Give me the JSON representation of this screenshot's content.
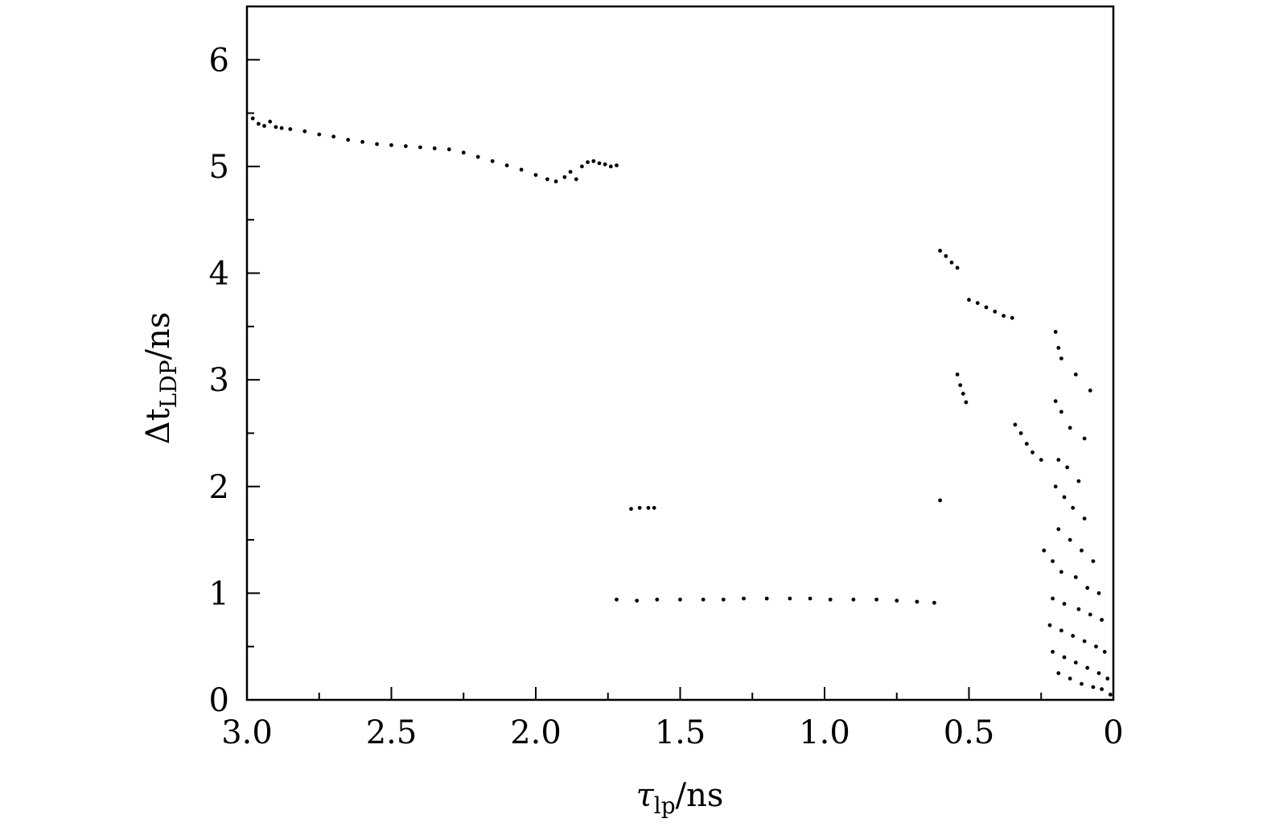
{
  "chart_data": {
    "type": "scatter",
    "title": "",
    "xlabel": {
      "symbol": "τ",
      "subscript": "lp",
      "unit": "/ns"
    },
    "ylabel": {
      "symbol": "Δt",
      "subscript": "LDP",
      "unit": "/ns"
    },
    "xlim": [
      3.0,
      0
    ],
    "ylim": [
      0,
      6.5
    ],
    "x_reversed": true,
    "grid": false,
    "legend": "none",
    "marker_color": "#000000",
    "x_ticks": [
      {
        "value": 3.0,
        "label": "3.0"
      },
      {
        "value": 2.5,
        "label": "2.5"
      },
      {
        "value": 2.0,
        "label": "2.0"
      },
      {
        "value": 1.5,
        "label": "1.5"
      },
      {
        "value": 1.0,
        "label": "1.0"
      },
      {
        "value": 0.5,
        "label": "0.5"
      },
      {
        "value": 0,
        "label": "0"
      }
    ],
    "x_minor_ticks": [
      2.75,
      2.25,
      1.75,
      1.25,
      0.75,
      0.25
    ],
    "y_ticks": [
      {
        "value": 0,
        "label": "0"
      },
      {
        "value": 1,
        "label": "1"
      },
      {
        "value": 2,
        "label": "2"
      },
      {
        "value": 3,
        "label": "3"
      },
      {
        "value": 4,
        "label": "4"
      },
      {
        "value": 5,
        "label": "5"
      },
      {
        "value": 6,
        "label": "6"
      }
    ],
    "y_minor_ticks": [
      0.5,
      1.5,
      2.5,
      3.5,
      4.5,
      5.5
    ],
    "series": [
      {
        "points": [
          [
            2.98,
            5.45
          ],
          [
            2.96,
            5.4
          ],
          [
            2.94,
            5.38
          ],
          [
            2.92,
            5.42
          ],
          [
            2.9,
            5.37
          ],
          [
            2.88,
            5.36
          ],
          [
            2.85,
            5.35
          ],
          [
            2.8,
            5.33
          ],
          [
            2.75,
            5.3
          ],
          [
            2.7,
            5.28
          ],
          [
            2.65,
            5.25
          ],
          [
            2.6,
            5.23
          ],
          [
            2.55,
            5.21
          ],
          [
            2.5,
            5.2
          ],
          [
            2.45,
            5.19
          ],
          [
            2.4,
            5.18
          ],
          [
            2.35,
            5.17
          ],
          [
            2.3,
            5.16
          ],
          [
            2.25,
            5.13
          ],
          [
            2.2,
            5.09
          ],
          [
            2.15,
            5.05
          ],
          [
            2.1,
            5.01
          ],
          [
            2.05,
            4.97
          ],
          [
            2.0,
            4.92
          ],
          [
            1.96,
            4.88
          ],
          [
            1.93,
            4.86
          ],
          [
            1.9,
            4.9
          ],
          [
            1.88,
            4.95
          ],
          [
            1.86,
            4.88
          ],
          [
            1.84,
            5.0
          ],
          [
            1.82,
            5.04
          ],
          [
            1.8,
            5.05
          ],
          [
            1.78,
            5.03
          ],
          [
            1.76,
            5.02
          ],
          [
            1.74,
            5.0
          ],
          [
            1.72,
            5.01
          ]
        ]
      },
      {
        "points": [
          [
            0.6,
            4.21
          ],
          [
            0.58,
            4.16
          ],
          [
            0.56,
            4.1
          ],
          [
            0.54,
            4.05
          ],
          [
            0.5,
            3.75
          ],
          [
            0.47,
            3.72
          ],
          [
            0.44,
            3.68
          ],
          [
            0.41,
            3.64
          ],
          [
            0.38,
            3.6
          ],
          [
            0.35,
            3.58
          ],
          [
            0.54,
            3.05
          ],
          [
            0.53,
            2.95
          ],
          [
            0.52,
            2.87
          ],
          [
            0.51,
            2.79
          ],
          [
            0.34,
            2.58
          ],
          [
            0.32,
            2.5
          ],
          [
            0.3,
            2.4
          ],
          [
            0.28,
            2.32
          ],
          [
            0.25,
            2.25
          ],
          [
            0.6,
            1.87
          ],
          [
            0.24,
            1.4
          ]
        ]
      },
      {
        "points": [
          [
            1.67,
            1.79
          ],
          [
            1.64,
            1.8
          ],
          [
            1.61,
            1.8
          ],
          [
            1.59,
            1.8
          ]
        ]
      },
      {
        "points": [
          [
            1.72,
            0.94
          ],
          [
            1.65,
            0.93
          ],
          [
            1.58,
            0.94
          ],
          [
            1.5,
            0.94
          ],
          [
            1.42,
            0.94
          ],
          [
            1.35,
            0.94
          ],
          [
            1.28,
            0.95
          ],
          [
            1.2,
            0.95
          ],
          [
            1.12,
            0.95
          ],
          [
            1.05,
            0.95
          ],
          [
            0.98,
            0.94
          ],
          [
            0.9,
            0.94
          ],
          [
            0.82,
            0.94
          ],
          [
            0.75,
            0.93
          ],
          [
            0.68,
            0.92
          ],
          [
            0.62,
            0.91
          ]
        ]
      },
      {
        "points": [
          [
            0.2,
            3.45
          ],
          [
            0.19,
            3.3
          ],
          [
            0.18,
            3.2
          ],
          [
            0.13,
            3.05
          ],
          [
            0.08,
            2.9
          ],
          [
            0.2,
            2.8
          ],
          [
            0.18,
            2.7
          ],
          [
            0.15,
            2.55
          ],
          [
            0.1,
            2.45
          ],
          [
            0.19,
            2.25
          ],
          [
            0.16,
            2.18
          ],
          [
            0.12,
            2.05
          ],
          [
            0.2,
            2.0
          ],
          [
            0.17,
            1.9
          ],
          [
            0.14,
            1.8
          ],
          [
            0.1,
            1.7
          ],
          [
            0.19,
            1.6
          ],
          [
            0.15,
            1.5
          ],
          [
            0.11,
            1.4
          ],
          [
            0.07,
            1.3
          ],
          [
            0.21,
            1.3
          ],
          [
            0.18,
            1.2
          ],
          [
            0.13,
            1.15
          ],
          [
            0.09,
            1.05
          ],
          [
            0.05,
            1.0
          ],
          [
            0.21,
            0.95
          ],
          [
            0.17,
            0.9
          ],
          [
            0.12,
            0.85
          ],
          [
            0.08,
            0.8
          ],
          [
            0.04,
            0.75
          ],
          [
            0.22,
            0.7
          ],
          [
            0.18,
            0.65
          ],
          [
            0.14,
            0.6
          ],
          [
            0.1,
            0.55
          ],
          [
            0.06,
            0.5
          ],
          [
            0.03,
            0.45
          ],
          [
            0.21,
            0.45
          ],
          [
            0.17,
            0.4
          ],
          [
            0.13,
            0.35
          ],
          [
            0.09,
            0.3
          ],
          [
            0.05,
            0.25
          ],
          [
            0.02,
            0.2
          ],
          [
            0.19,
            0.25
          ],
          [
            0.15,
            0.2
          ],
          [
            0.11,
            0.15
          ],
          [
            0.07,
            0.12
          ],
          [
            0.04,
            0.1
          ],
          [
            0.01,
            0.05
          ]
        ]
      }
    ]
  }
}
